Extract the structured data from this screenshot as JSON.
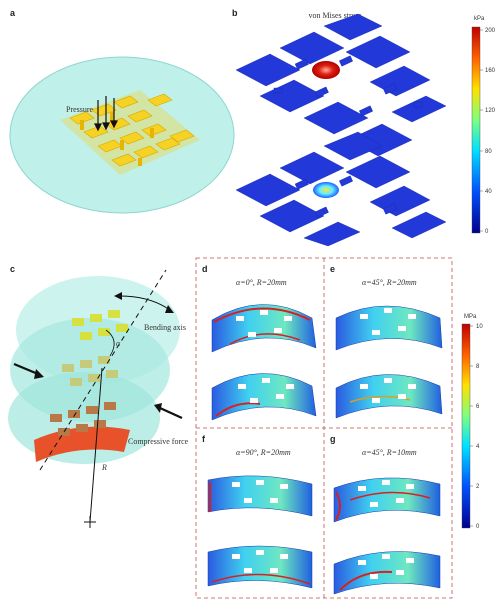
{
  "panels": {
    "a": {
      "label": "a",
      "annotation": "Pressure"
    },
    "b": {
      "label": "b",
      "title": "von Mises stress",
      "colorbar": {
        "unit": "kPa",
        "ticks": [
          "200",
          "160",
          "120",
          "80",
          "40",
          "0"
        ]
      }
    },
    "c": {
      "label": "c",
      "bending_axis": "Bending axis",
      "compressive_force": "Compressive force",
      "alpha_symbol": "α",
      "radius_symbol": "R"
    },
    "d": {
      "label": "d",
      "condition": "α=0°, R=20mm"
    },
    "e": {
      "label": "e",
      "condition": "α=45°, R=20mm"
    },
    "f": {
      "label": "f",
      "condition": "α=90°, R=20mm"
    },
    "g": {
      "label": "g",
      "condition": "α=45°, R=10mm"
    },
    "right_colorbar": {
      "unit": "MPa",
      "ticks": [
        "10",
        "8",
        "6",
        "4",
        "2",
        "0"
      ]
    }
  },
  "colors": {
    "substrate": "#bff0ea",
    "electrode": "#f5d224",
    "mesh": "#2a40d8",
    "hotspot": "#e03020",
    "frame_dash": "#c0504d"
  }
}
